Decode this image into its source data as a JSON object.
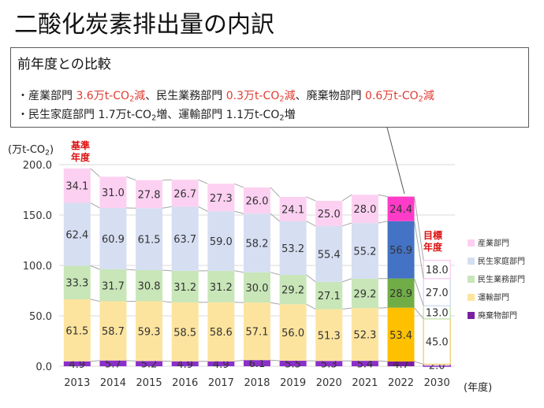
{
  "title": "二酸化炭素排出量の内訳",
  "comparison": {
    "heading": "前年度との比較",
    "line1": [
      {
        "text": "・産業部門 ",
        "red": false
      },
      {
        "text": "3.6万t-CO",
        "red": true
      },
      {
        "text": "2",
        "red": true,
        "sub": true
      },
      {
        "text": "減",
        "red": true
      },
      {
        "text": "、民生業務部門 ",
        "red": false
      },
      {
        "text": "0.3万t-CO",
        "red": true
      },
      {
        "text": "2",
        "red": true,
        "sub": true
      },
      {
        "text": "減",
        "red": true
      },
      {
        "text": "、廃棄物部門 ",
        "red": false
      },
      {
        "text": "0.6万t-CO",
        "red": true
      },
      {
        "text": "2",
        "red": true,
        "sub": true
      },
      {
        "text": "減",
        "red": true
      }
    ],
    "line2": [
      {
        "text": "・民生家庭部門 1.7万t-CO",
        "red": false
      },
      {
        "text": "2",
        "red": false,
        "sub": true
      },
      {
        "text": "増、運輸部門  1.1万t-CO",
        "red": false
      },
      {
        "text": "2",
        "red": false,
        "sub": true
      },
      {
        "text": "増",
        "red": false
      }
    ]
  },
  "annotations": {
    "unit_prefix": "(万t-CO",
    "unit_sub": "2",
    "unit_suffix": ")",
    "base_year": "基準\n年度",
    "target_year": "目標\n年度",
    "year_unit": "(年度)"
  },
  "colors": {
    "waste": "#8b2fc9",
    "transport": "#fde49e",
    "business": "#c8e6b8",
    "household": "#d6def2",
    "industry": "#fcd0f1",
    "highlight_waste": "#7b1fa2",
    "highlight_transport": "#ffc000",
    "highlight_business": "#70ad47",
    "highlight_household": "#4472c4",
    "highlight_industry": "#ff3cc8",
    "grid": "#d9d9d9",
    "connector": "#a6a6a6"
  },
  "chart_data": {
    "type": "bar",
    "stacked": true,
    "categories": [
      "2013",
      "2014",
      "2015",
      "2016",
      "2017",
      "2018",
      "2019",
      "2020",
      "2021",
      "2022",
      "2030"
    ],
    "ylim": [
      0,
      200
    ],
    "yticks": [
      "0.0",
      "50.0",
      "100.0",
      "150.0",
      "200.0"
    ],
    "legend_position": "right",
    "highlight_category": "2022",
    "target_category": "2030",
    "series": [
      {
        "name": "廃棄物部門",
        "key": "waste",
        "values": [
          4.9,
          5.7,
          5.2,
          4.9,
          4.9,
          6.1,
          5.5,
          5.3,
          5.4,
          4.7,
          2.0
        ],
        "labels": [
          "4.9",
          "5.7",
          "5.2",
          "4.9",
          "4.9",
          "6.1",
          "5.5",
          "5.3",
          "5.4",
          "4.7",
          "2.0"
        ]
      },
      {
        "name": "運輸部門",
        "key": "transport",
        "values": [
          61.5,
          58.7,
          59.3,
          58.5,
          58.6,
          57.1,
          56.0,
          51.3,
          52.3,
          53.4,
          45.0
        ],
        "labels": [
          "61.5",
          "58.7",
          "59.3",
          "58.5",
          "58.6",
          "57.1",
          "56.0",
          "51.3",
          "52.3",
          "53.4",
          "45.0"
        ]
      },
      {
        "name": "民生業務部門",
        "key": "business",
        "values": [
          33.3,
          31.7,
          30.8,
          31.2,
          31.2,
          30.0,
          29.2,
          27.1,
          29.2,
          28.9,
          13.0
        ],
        "labels": [
          "33.3",
          "31.7",
          "30.8",
          "31.2",
          "31.2",
          "30.0",
          "29.2",
          "27.1",
          "29.2",
          "28.9",
          "13.0"
        ]
      },
      {
        "name": "民生家庭部門",
        "key": "household",
        "values": [
          62.4,
          60.9,
          61.5,
          63.7,
          59.0,
          58.2,
          53.2,
          55.4,
          55.2,
          56.9,
          27.0
        ],
        "labels": [
          "62.4",
          "60.9",
          "61.5",
          "63.7",
          "59.0",
          "58.2",
          "53.2",
          "55.4",
          "55.2",
          "56.9",
          "27.0"
        ]
      },
      {
        "name": "産業部門",
        "key": "industry",
        "values": [
          34.1,
          31.0,
          27.8,
          26.7,
          27.3,
          26.0,
          24.1,
          25.0,
          28.0,
          24.4,
          18.0
        ],
        "labels": [
          "34.1",
          "31.0",
          "27.8",
          "26.7",
          "27.3",
          "26.0",
          "24.1",
          "25.0",
          "28.0",
          "24.4",
          "18.0"
        ]
      }
    ],
    "legend": [
      "産業部門",
      "民生家庭部門",
      "民生業務部門",
      "運輸部門",
      "廃棄物部門"
    ]
  }
}
